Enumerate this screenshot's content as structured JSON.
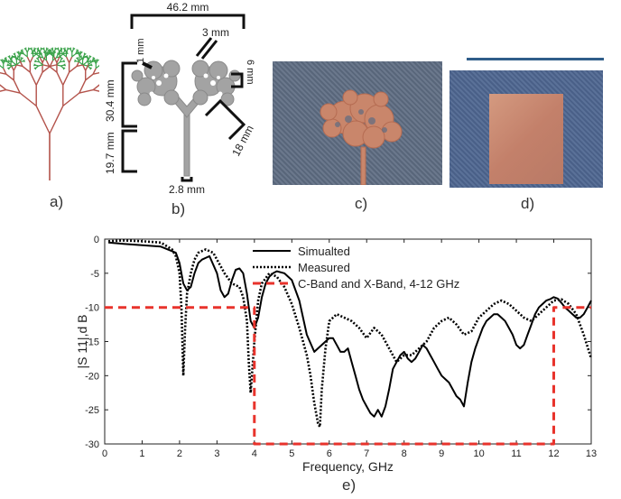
{
  "figure": {
    "panel_labels": {
      "a": "a)",
      "b": "b)",
      "c": "c)",
      "d": "d)",
      "e": "e)"
    },
    "dimensions": {
      "width_top": "46.2 mm",
      "upper_height": "30.4 mm",
      "lower_height": "19.7 mm",
      "stub_1": "1 mm",
      "stub_3": "3 mm",
      "stub_6": "6 mm",
      "branch_18": "18 mm",
      "feed_width": "2.8 mm"
    },
    "colors": {
      "tree_trunk": "#b3524a",
      "tree_leaf": "#3aa24a",
      "antenna_gray": "#a3a3a3",
      "denim": "#56647d",
      "copper": "#c9866b",
      "dash_red": "#e8332c"
    }
  },
  "chart_data": {
    "type": "line",
    "xlabel": "Frequency,  GHz",
    "ylabel": "|S  11|,d B",
    "xlim": [
      0,
      13
    ],
    "ylim": [
      -30,
      0
    ],
    "xticks": [
      0,
      1,
      2,
      3,
      4,
      5,
      6,
      7,
      8,
      9,
      10,
      11,
      12,
      13
    ],
    "yticks": [
      0,
      -5,
      -10,
      -15,
      -20,
      -25,
      -30
    ],
    "grid": false,
    "legend_position": "top-center",
    "series": [
      {
        "name": "Simualted",
        "style": "solid",
        "color": "#000000",
        "x": [
          0.1,
          0.5,
          1.0,
          1.5,
          1.9,
          2.0,
          2.1,
          2.2,
          2.3,
          2.4,
          2.5,
          2.6,
          2.8,
          3.0,
          3.1,
          3.2,
          3.3,
          3.4,
          3.5,
          3.6,
          3.7,
          3.8,
          3.9,
          4.0,
          4.1,
          4.2,
          4.3,
          4.4,
          4.5,
          4.6,
          4.8,
          5.0,
          5.2,
          5.4,
          5.6,
          5.8,
          5.9,
          6.0,
          6.1,
          6.2,
          6.3,
          6.4,
          6.5,
          6.6,
          6.7,
          6.8,
          6.9,
          7.0,
          7.1,
          7.2,
          7.3,
          7.4,
          7.5,
          7.6,
          7.7,
          7.8,
          7.9,
          8.0,
          8.1,
          8.2,
          8.3,
          8.4,
          8.5,
          8.6,
          8.7,
          8.8,
          8.9,
          9.0,
          9.1,
          9.2,
          9.3,
          9.4,
          9.5,
          9.6,
          9.7,
          9.8,
          9.9,
          10.0,
          10.1,
          10.2,
          10.3,
          10.4,
          10.5,
          10.6,
          10.7,
          10.8,
          10.9,
          11.0,
          11.1,
          11.2,
          11.3,
          11.4,
          11.5,
          11.6,
          11.7,
          11.8,
          11.9,
          12.0,
          12.1,
          12.2,
          12.3,
          12.4,
          12.5,
          12.6,
          12.7,
          12.8,
          12.9,
          13.0
        ],
        "y": [
          -0.5,
          -0.7,
          -0.9,
          -1.1,
          -2.0,
          -3.5,
          -6.5,
          -7.5,
          -7.0,
          -5.0,
          -3.5,
          -3.0,
          -2.5,
          -5.0,
          -7.5,
          -8.5,
          -8.0,
          -6.0,
          -4.5,
          -4.3,
          -5.0,
          -8.0,
          -12.0,
          -13.0,
          -11.5,
          -8.5,
          -6.5,
          -5.5,
          -5.0,
          -4.7,
          -5.0,
          -6.0,
          -9.0,
          -14.0,
          -16.5,
          -15.5,
          -15.0,
          -14.5,
          -14.5,
          -15.5,
          -16.5,
          -16.5,
          -16.0,
          -18.0,
          -20.0,
          -22.0,
          -23.5,
          -24.5,
          -25.5,
          -26.0,
          -25.0,
          -26.0,
          -24.5,
          -22.0,
          -19.0,
          -18.0,
          -17.0,
          -16.5,
          -17.5,
          -18.0,
          -17.5,
          -16.5,
          -15.5,
          -16.0,
          -17.0,
          -18.0,
          -19.0,
          -20.0,
          -20.5,
          -21.0,
          -22.0,
          -23.0,
          -23.5,
          -24.5,
          -21.0,
          -18.0,
          -16.0,
          -14.5,
          -13.0,
          -12.0,
          -11.5,
          -11.0,
          -11.0,
          -11.5,
          -12.0,
          -13.0,
          -14.0,
          -15.5,
          -16.0,
          -15.5,
          -14.0,
          -12.5,
          -11.0,
          -10.0,
          -9.5,
          -9.0,
          -8.8,
          -8.5,
          -8.7,
          -9.3,
          -10.0,
          -10.5,
          -11.0,
          -11.5,
          -11.5,
          -11.0,
          -10.0,
          -9.0
        ]
      },
      {
        "name": "Measured",
        "style": "dotted",
        "color": "#000000",
        "x": [
          0.1,
          0.5,
          1.0,
          1.5,
          1.8,
          1.9,
          2.0,
          2.05,
          2.1,
          2.15,
          2.2,
          2.3,
          2.4,
          2.5,
          2.7,
          2.9,
          3.0,
          3.2,
          3.4,
          3.6,
          3.7,
          3.8,
          3.85,
          3.9,
          4.0,
          4.1,
          4.2,
          4.4,
          4.6,
          4.8,
          5.0,
          5.2,
          5.4,
          5.5,
          5.6,
          5.7,
          5.75,
          5.8,
          5.9,
          6.0,
          6.2,
          6.4,
          6.6,
          6.8,
          7.0,
          7.2,
          7.4,
          7.6,
          7.8,
          8.0,
          8.2,
          8.4,
          8.6,
          8.8,
          9.0,
          9.2,
          9.4,
          9.6,
          9.8,
          10.0,
          10.2,
          10.4,
          10.6,
          10.8,
          11.0,
          11.2,
          11.4,
          11.6,
          11.8,
          12.0,
          12.2,
          12.4,
          12.6,
          12.8,
          13.0
        ],
        "y": [
          -0.3,
          -0.2,
          -0.3,
          -0.5,
          -1.5,
          -2.5,
          -5.0,
          -10.0,
          -20.0,
          -13.0,
          -8.0,
          -5.0,
          -3.0,
          -2.0,
          -1.5,
          -2.0,
          -3.0,
          -5.0,
          -6.5,
          -7.0,
          -8.5,
          -12.0,
          -18.0,
          -22.5,
          -15.0,
          -9.0,
          -6.5,
          -5.0,
          -5.5,
          -7.0,
          -9.5,
          -13.0,
          -17.0,
          -20.0,
          -24.0,
          -27.0,
          -27.5,
          -22.0,
          -16.0,
          -12.0,
          -11.0,
          -11.5,
          -12.0,
          -13.0,
          -14.5,
          -13.0,
          -14.0,
          -16.0,
          -18.0,
          -17.0,
          -17.0,
          -16.0,
          -15.0,
          -13.0,
          -12.0,
          -11.5,
          -12.5,
          -14.0,
          -13.5,
          -11.5,
          -10.5,
          -9.5,
          -9.0,
          -9.5,
          -10.5,
          -11.5,
          -12.0,
          -11.0,
          -10.0,
          -9.0,
          -8.8,
          -9.5,
          -11.0,
          -14.0,
          -17.5
        ]
      },
      {
        "name": "C-Band and X-Band, 4-12  GHz",
        "style": "dashed",
        "color": "#e8332c",
        "x": [
          0,
          4,
          4,
          12,
          12,
          13
        ],
        "y": [
          -10,
          -10,
          -30,
          -30,
          -10,
          -10
        ]
      }
    ]
  }
}
